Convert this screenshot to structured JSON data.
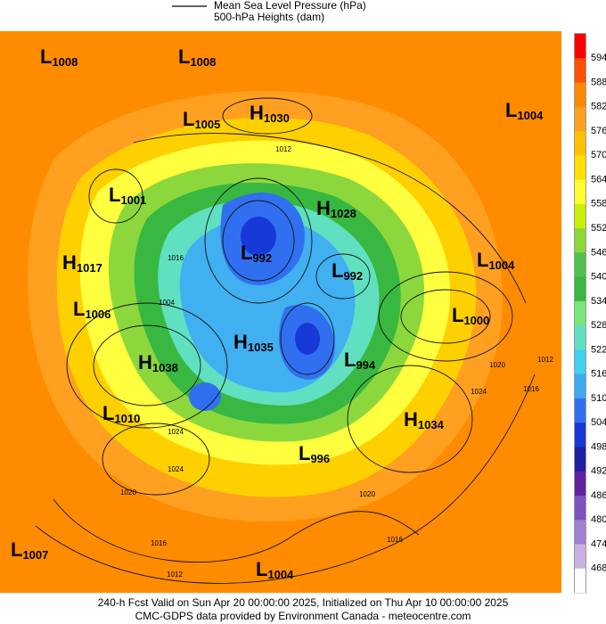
{
  "legend": {
    "items": [
      "Mean Sea Level Pressure (hPa)",
      "500-hPa Heights (dam)"
    ]
  },
  "centers": [
    {
      "type": "L",
      "value": 1008
    },
    {
      "type": "L",
      "value": 1008
    },
    {
      "type": "L",
      "value": 1005
    },
    {
      "type": "H",
      "value": 1030
    },
    {
      "type": "L",
      "value": 1004
    },
    {
      "type": "L",
      "value": 1001
    },
    {
      "type": "H",
      "value": 1028
    },
    {
      "type": "L",
      "value": 992
    },
    {
      "type": "L",
      "value": 992
    },
    {
      "type": "H",
      "value": 1017
    },
    {
      "type": "L",
      "value": 1004
    },
    {
      "type": "L",
      "value": 1006
    },
    {
      "type": "L",
      "value": 1000
    },
    {
      "type": "H",
      "value": 1035
    },
    {
      "type": "H",
      "value": 1038
    },
    {
      "type": "L",
      "value": 994
    },
    {
      "type": "L",
      "value": 1010
    },
    {
      "type": "H",
      "value": 1034
    },
    {
      "type": "L",
      "value": 996
    },
    {
      "type": "L",
      "value": 1007
    },
    {
      "type": "L",
      "value": 1004
    }
  ],
  "contour_labels": [
    "1012",
    "1016",
    "1004",
    "1024",
    "1024",
    "1020",
    "1016",
    "1012",
    "1016",
    "1020",
    "1020",
    "1024",
    "1016",
    "1012"
  ],
  "colorbar": {
    "labels": [
      594,
      588,
      582,
      576,
      570,
      564,
      558,
      552,
      546,
      540,
      534,
      528,
      522,
      516,
      510,
      504,
      498,
      492,
      486,
      480,
      474,
      468
    ],
    "colors": [
      "#ff0000",
      "#ff5000",
      "#ff8a00",
      "#ffa020",
      "#ffc000",
      "#ffe000",
      "#ffff30",
      "#c8f000",
      "#8cd83c",
      "#50c050",
      "#38b840",
      "#78e678",
      "#60e0c0",
      "#40d0f0",
      "#40a8f0",
      "#3070f0",
      "#1838d8",
      "#2020a0",
      "#6020a0",
      "#8050c0",
      "#a080d0",
      "#c8b0e0",
      "#ffffff"
    ]
  },
  "footer": {
    "lines": [
      "240-h Fcst Valid on Sun Apr 20 00:00:00 2025, Initialized on Thu Apr 10 00:00:00 2025",
      "CMC-GDPS data provided by Environment Canada - meteocentre.com"
    ]
  }
}
